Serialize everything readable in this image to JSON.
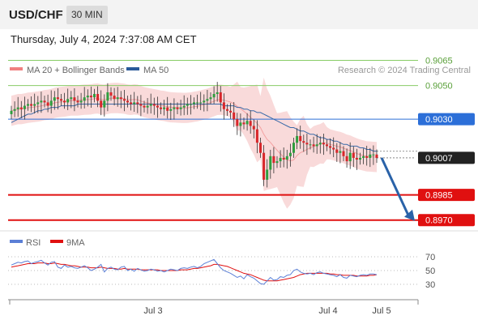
{
  "header": {
    "symbol": "USD/CHF",
    "timeframe": "30 MIN",
    "datetime": "Thursday, July 4, 2024 7:37:08 AM CET"
  },
  "legend": {
    "items": [
      {
        "label": "MA 20 + Bollinger Bands",
        "color": "#f08080"
      },
      {
        "label": "MA 50",
        "color": "#2a5a9a"
      }
    ],
    "credit": "Research © 2024 Trading Central"
  },
  "levels": [
    {
      "value": 0.9065,
      "label": "0.9065",
      "color": "#88cc66",
      "kind": "resistance"
    },
    {
      "value": 0.905,
      "label": "0.9050",
      "color": "#88cc66",
      "kind": "resistance"
    },
    {
      "value": 0.903,
      "label": "0.9030",
      "color": "#2c6fd8",
      "kind": "pivot"
    },
    {
      "value": 0.9007,
      "label": "0.9007",
      "color": "#222222",
      "kind": "last"
    },
    {
      "value": 0.8985,
      "label": "0.8985",
      "color": "#e01010",
      "kind": "support"
    },
    {
      "value": 0.897,
      "label": "0.8970",
      "color": "#e01010",
      "kind": "support"
    }
  ],
  "rsi_panel": {
    "legend": [
      {
        "label": "RSI",
        "color": "#5b7fd6"
      },
      {
        "label": "9MA",
        "color": "#e01010"
      }
    ],
    "ticks": [
      "70",
      "50",
      "30"
    ],
    "tick_values": [
      70,
      50,
      30
    ]
  },
  "x_labels": [
    "Jul 3",
    "Jul 4",
    "Jul 5"
  ],
  "colors": {
    "up": "#2e9e3e",
    "down": "#d8262a"
  },
  "chart_data": {
    "type": "candlestick",
    "ylim": [
      0.8966,
      0.9072
    ],
    "close": [
      0.9035,
      0.9036,
      0.9037,
      0.9036,
      0.9038,
      0.9039,
      0.9038,
      0.9039,
      0.904,
      0.9041,
      0.904,
      0.9038,
      0.9041,
      0.9043,
      0.9042,
      0.9041,
      0.904,
      0.9042,
      0.9043,
      0.9041,
      0.904,
      0.9041,
      0.9043,
      0.9044,
      0.9043,
      0.9045,
      0.9041,
      0.9037,
      0.9041,
      0.9046,
      0.9044,
      0.9042,
      0.9043,
      0.9042,
      0.9041,
      0.904,
      0.9039,
      0.904,
      0.9039,
      0.9038,
      0.9037,
      0.9038,
      0.9039,
      0.9038,
      0.9037,
      0.9036,
      0.9037,
      0.9035,
      0.9036,
      0.9037,
      0.9036,
      0.9037,
      0.9038,
      0.9039,
      0.9039,
      0.904,
      0.904,
      0.904,
      0.9041,
      0.9042,
      0.9043,
      0.9045,
      0.9046,
      0.904,
      0.9036,
      0.9035,
      0.9034,
      0.903,
      0.9026,
      0.9028,
      0.9027,
      0.9029,
      0.9026,
      0.9024,
      0.9016,
      0.901,
      0.8994,
      0.9,
      0.9008,
      0.9004,
      0.9005,
      0.9007,
      0.9006,
      0.9008,
      0.901,
      0.9016,
      0.902,
      0.9017,
      0.9016,
      0.9015,
      0.9015,
      0.9014,
      0.9015,
      0.9016,
      0.9015,
      0.9014,
      0.9013,
      0.9012,
      0.901,
      0.9011,
      0.9008,
      0.9005,
      0.901,
      0.9007,
      0.9006,
      0.9007,
      0.9008,
      0.9007,
      0.9009,
      0.9009,
      0.9007
    ],
    "rsi": [
      58,
      60,
      62,
      61,
      63,
      64,
      60,
      62,
      63,
      65,
      61,
      58,
      62,
      63,
      55,
      53,
      58,
      55,
      56,
      54,
      53,
      55,
      57,
      54,
      50,
      52,
      55,
      59,
      48,
      53,
      55,
      52,
      51,
      55,
      56,
      50,
      52,
      49,
      53,
      51,
      49,
      50,
      52,
      51,
      49,
      50,
      48,
      50,
      52,
      51,
      50,
      53,
      54,
      53,
      55,
      56,
      54,
      56,
      60,
      62,
      64,
      66,
      60,
      54,
      50,
      48,
      46,
      43,
      40,
      42,
      38,
      44,
      41,
      39,
      35,
      31,
      30,
      35,
      40,
      36,
      37,
      41,
      40,
      43,
      44,
      50,
      52,
      48,
      46,
      45,
      46,
      44,
      47,
      48,
      46,
      45,
      44,
      43,
      41,
      44,
      40,
      39,
      43,
      42,
      41,
      43,
      44,
      43,
      45,
      45,
      44
    ],
    "rsi_ma": [
      55,
      56,
      57,
      58,
      59,
      60,
      60,
      60,
      61,
      61,
      61,
      60,
      60,
      61,
      60,
      59,
      59,
      58,
      57,
      57,
      56,
      55,
      55,
      55,
      54,
      54,
      54,
      55,
      54,
      53,
      53,
      53,
      52,
      52,
      53,
      52,
      52,
      52,
      52,
      51,
      51,
      51,
      51,
      51,
      51,
      50,
      50,
      50,
      50,
      50,
      50,
      51,
      51,
      51,
      52,
      53,
      53,
      54,
      55,
      56,
      57,
      59,
      59,
      58,
      57,
      56,
      54,
      52,
      50,
      48,
      46,
      45,
      44,
      42,
      40,
      38,
      36,
      35,
      35,
      35,
      35,
      36,
      37,
      38,
      39,
      40,
      42,
      44,
      45,
      46,
      46,
      46,
      46,
      46,
      46,
      46,
      45,
      45,
      44,
      44,
      43,
      43,
      43,
      43,
      42,
      42,
      42,
      42,
      43,
      43,
      44
    ],
    "ma50": [
      0.9028,
      0.9029,
      0.903,
      0.9031,
      0.9032,
      0.9033,
      0.9033,
      0.9034,
      0.9035,
      0.9035,
      0.9036,
      0.9036,
      0.9037,
      0.9037,
      0.9037,
      0.9038,
      0.9038,
      0.9038,
      0.9038,
      0.9038,
      0.9039,
      0.9039,
      0.9039,
      0.9039,
      0.9039,
      0.9039,
      0.9039,
      0.9039,
      0.9039,
      0.9039,
      0.9039,
      0.9039,
      0.9039,
      0.9039,
      0.9039,
      0.9039,
      0.9039,
      0.9039,
      0.9039,
      0.9039,
      0.9039,
      0.9039,
      0.9039,
      0.9039,
      0.9039,
      0.9039,
      0.9039,
      0.9039,
      0.9039,
      0.9039,
      0.9039,
      0.9039,
      0.9039,
      0.9039,
      0.9039,
      0.9039,
      0.9039,
      0.9039,
      0.9039,
      0.9039,
      0.9039,
      0.9039,
      0.9039,
      0.9039,
      0.9038,
      0.9038,
      0.9038,
      0.9038,
      0.9037,
      0.9037,
      0.9036,
      0.9036,
      0.9035,
      0.9035,
      0.9034,
      0.9034,
      0.9033,
      0.9032,
      0.9031,
      0.903,
      0.9029,
      0.9028,
      0.9027,
      0.9026,
      0.9025,
      0.9025,
      0.9024,
      0.9023,
      0.9023,
      0.9022,
      0.9021,
      0.9021,
      0.902,
      0.9019,
      0.9019,
      0.9018,
      0.9018,
      0.9017,
      0.9017,
      0.9016,
      0.9015,
      0.9015,
      0.9014,
      0.9014,
      0.9014,
      0.9013,
      0.9013,
      0.9012,
      0.9012,
      0.9011,
      0.9011
    ],
    "last_price": 0.9007,
    "projection": {
      "from": 0.9007,
      "to": 0.897
    },
    "x_labels": [
      "Jul 3",
      "Jul 4",
      "Jul 5"
    ]
  }
}
